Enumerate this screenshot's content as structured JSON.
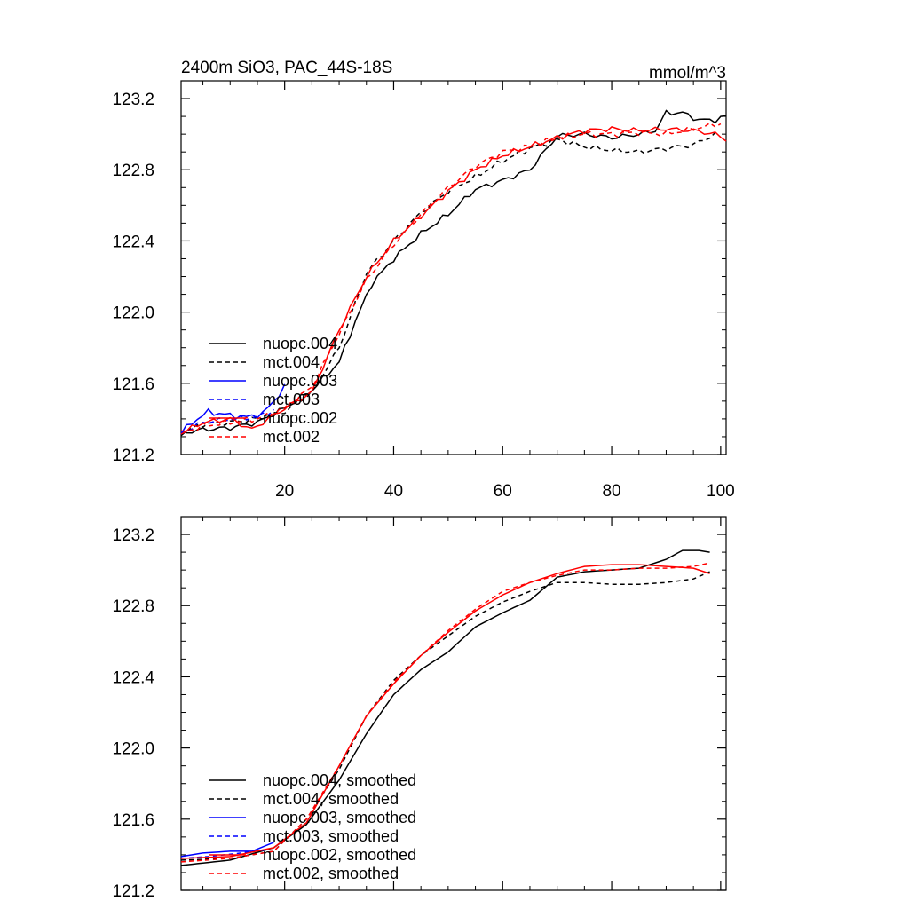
{
  "figure": {
    "title_left": "2400m SiO3, PAC_44S-18S",
    "title_right": "mmol/m^3"
  },
  "chart_data": [
    {
      "type": "line",
      "xlim": [
        1,
        101
      ],
      "ylim": [
        121.2,
        123.3
      ],
      "x_ticks": [
        20,
        40,
        60,
        80,
        100
      ],
      "y_ticks": [
        121.2,
        121.6,
        122.0,
        122.4,
        122.8,
        123.2
      ],
      "x_tick_labels": [
        "20",
        "40",
        "60",
        "80",
        "100"
      ],
      "y_tick_labels": [
        "121.2",
        "121.6",
        "122.0",
        "122.4",
        "122.8",
        "123.2"
      ],
      "grid": false,
      "legend_position": "lower-left",
      "series": [
        {
          "name": "nuopc.004",
          "color": "#000000",
          "dash": "solid",
          "x_start": 1,
          "x_end": 101,
          "points": [
            [
              1,
              121.32
            ],
            [
              5,
              121.34
            ],
            [
              10,
              121.35
            ],
            [
              15,
              121.38
            ],
            [
              20,
              121.46
            ],
            [
              25,
              121.56
            ],
            [
              30,
              121.72
            ],
            [
              33,
              121.95
            ],
            [
              36,
              122.16
            ],
            [
              40,
              122.3
            ],
            [
              45,
              122.44
            ],
            [
              50,
              122.55
            ],
            [
              55,
              122.69
            ],
            [
              60,
              122.74
            ],
            [
              65,
              122.8
            ],
            [
              70,
              122.99
            ],
            [
              75,
              123.0
            ],
            [
              80,
              122.98
            ],
            [
              85,
              123.0
            ],
            [
              88,
              123.02
            ],
            [
              90,
              123.12
            ],
            [
              93,
              123.12
            ],
            [
              96,
              123.08
            ],
            [
              99,
              123.08
            ],
            [
              101,
              123.1
            ]
          ]
        },
        {
          "name": "mct.004",
          "color": "#000000",
          "dash": "dashed",
          "x_start": 1,
          "x_end": 99,
          "points": [
            [
              1,
              121.32
            ],
            [
              5,
              121.37
            ],
            [
              10,
              121.38
            ],
            [
              15,
              121.4
            ],
            [
              20,
              121.44
            ],
            [
              25,
              121.55
            ],
            [
              30,
              121.8
            ],
            [
              35,
              122.22
            ],
            [
              40,
              122.4
            ],
            [
              45,
              122.56
            ],
            [
              50,
              122.68
            ],
            [
              55,
              122.76
            ],
            [
              60,
              122.85
            ],
            [
              65,
              122.92
            ],
            [
              70,
              122.97
            ],
            [
              75,
              122.93
            ],
            [
              80,
              122.91
            ],
            [
              85,
              122.9
            ],
            [
              90,
              122.92
            ],
            [
              95,
              122.94
            ],
            [
              99,
              123.0
            ]
          ]
        },
        {
          "name": "nuopc.003",
          "color": "#0000ff",
          "dash": "solid",
          "x_start": 1,
          "x_end": 20,
          "points": [
            [
              1,
              121.32
            ],
            [
              3,
              121.38
            ],
            [
              6,
              121.44
            ],
            [
              10,
              121.42
            ],
            [
              13,
              121.41
            ],
            [
              16,
              121.43
            ],
            [
              18,
              121.5
            ],
            [
              20,
              121.58
            ]
          ]
        },
        {
          "name": "mct.003",
          "color": "#0000ff",
          "dash": "dashed",
          "x_start": 1,
          "x_end": 18,
          "points": [
            [
              1,
              121.32
            ],
            [
              5,
              121.38
            ],
            [
              10,
              121.4
            ],
            [
              15,
              121.41
            ],
            [
              18,
              121.45
            ]
          ]
        },
        {
          "name": "nuopc.002",
          "color": "#ff0000",
          "dash": "solid",
          "x_start": 1,
          "x_end": 101,
          "points": [
            [
              1,
              121.32
            ],
            [
              5,
              121.38
            ],
            [
              10,
              121.4
            ],
            [
              14,
              121.34
            ],
            [
              20,
              121.46
            ],
            [
              25,
              121.55
            ],
            [
              30,
              121.9
            ],
            [
              35,
              122.2
            ],
            [
              40,
              122.4
            ],
            [
              45,
              122.54
            ],
            [
              50,
              122.68
            ],
            [
              55,
              122.8
            ],
            [
              60,
              122.88
            ],
            [
              65,
              122.93
            ],
            [
              70,
              122.98
            ],
            [
              75,
              123.02
            ],
            [
              80,
              123.03
            ],
            [
              85,
              123.02
            ],
            [
              90,
              123.03
            ],
            [
              95,
              123.02
            ],
            [
              99,
              123.0
            ],
            [
              101,
              122.97
            ]
          ]
        },
        {
          "name": "mct.002",
          "color": "#ff0000",
          "dash": "dashed",
          "x_start": 1,
          "x_end": 100,
          "points": [
            [
              1,
              121.32
            ],
            [
              5,
              121.36
            ],
            [
              10,
              121.38
            ],
            [
              15,
              121.4
            ],
            [
              20,
              121.46
            ],
            [
              25,
              121.58
            ],
            [
              30,
              121.88
            ],
            [
              35,
              122.18
            ],
            [
              40,
              122.38
            ],
            [
              45,
              122.55
            ],
            [
              50,
              122.7
            ],
            [
              55,
              122.82
            ],
            [
              60,
              122.9
            ],
            [
              65,
              122.93
            ],
            [
              70,
              122.98
            ],
            [
              75,
              123.0
            ],
            [
              80,
              123.0
            ],
            [
              85,
              123.01
            ],
            [
              90,
              123.0
            ],
            [
              95,
              123.03
            ],
            [
              100,
              123.06
            ]
          ]
        }
      ]
    },
    {
      "type": "line",
      "xlim": [
        1,
        101
      ],
      "ylim": [
        121.2,
        123.3
      ],
      "x_ticks": [
        20,
        40,
        60,
        80,
        100
      ],
      "y_ticks": [
        121.2,
        121.6,
        122.0,
        122.4,
        122.8,
        123.2
      ],
      "y_tick_labels": [
        "121.2",
        "121.6",
        "122.0",
        "122.4",
        "122.8",
        "123.2"
      ],
      "grid": false,
      "legend_position": "lower-left",
      "series": [
        {
          "name": "nuopc.004, smoothed",
          "color": "#000000",
          "dash": "solid",
          "x_start": 1,
          "x_end": 98,
          "points": [
            [
              1,
              121.34
            ],
            [
              10,
              121.37
            ],
            [
              18,
              121.44
            ],
            [
              24,
              121.57
            ],
            [
              30,
              121.82
            ],
            [
              35,
              122.08
            ],
            [
              40,
              122.3
            ],
            [
              45,
              122.44
            ],
            [
              50,
              122.54
            ],
            [
              55,
              122.68
            ],
            [
              60,
              122.76
            ],
            [
              65,
              122.83
            ],
            [
              70,
              122.96
            ],
            [
              75,
              122.99
            ],
            [
              80,
              123.0
            ],
            [
              85,
              123.01
            ],
            [
              90,
              123.06
            ],
            [
              93,
              123.11
            ],
            [
              96,
              123.11
            ],
            [
              98,
              123.1
            ]
          ]
        },
        {
          "name": "mct.004, smoothed",
          "color": "#000000",
          "dash": "dashed",
          "x_start": 1,
          "x_end": 98,
          "points": [
            [
              1,
              121.37
            ],
            [
              10,
              121.38
            ],
            [
              18,
              121.42
            ],
            [
              24,
              121.6
            ],
            [
              30,
              121.88
            ],
            [
              35,
              122.18
            ],
            [
              40,
              122.38
            ],
            [
              45,
              122.52
            ],
            [
              50,
              122.63
            ],
            [
              55,
              122.74
            ],
            [
              60,
              122.82
            ],
            [
              65,
              122.88
            ],
            [
              70,
              122.93
            ],
            [
              75,
              122.93
            ],
            [
              80,
              122.92
            ],
            [
              85,
              122.92
            ],
            [
              90,
              122.93
            ],
            [
              95,
              122.95
            ],
            [
              98,
              122.99
            ]
          ]
        },
        {
          "name": "nuopc.003, smoothed",
          "color": "#0000ff",
          "dash": "solid",
          "x_start": 1,
          "x_end": 18,
          "points": [
            [
              1,
              121.39
            ],
            [
              5,
              121.41
            ],
            [
              10,
              121.42
            ],
            [
              14,
              121.42
            ],
            [
              18,
              121.47
            ]
          ]
        },
        {
          "name": "mct.003, smoothed",
          "color": "#0000ff",
          "dash": "dashed",
          "x_start": 1,
          "x_end": 17,
          "points": [
            [
              1,
              121.38
            ],
            [
              6,
              121.39
            ],
            [
              12,
              121.41
            ],
            [
              17,
              121.43
            ]
          ]
        },
        {
          "name": "nuopc.002, smoothed",
          "color": "#ff0000",
          "dash": "solid",
          "x_start": 1,
          "x_end": 98,
          "points": [
            [
              1,
              121.38
            ],
            [
              10,
              121.39
            ],
            [
              18,
              121.44
            ],
            [
              24,
              121.58
            ],
            [
              30,
              121.9
            ],
            [
              35,
              122.18
            ],
            [
              40,
              122.36
            ],
            [
              45,
              122.52
            ],
            [
              50,
              122.65
            ],
            [
              55,
              122.77
            ],
            [
              60,
              122.86
            ],
            [
              65,
              122.93
            ],
            [
              70,
              122.98
            ],
            [
              75,
              123.02
            ],
            [
              80,
              123.03
            ],
            [
              85,
              123.03
            ],
            [
              90,
              123.02
            ],
            [
              95,
              123.01
            ],
            [
              98,
              122.98
            ]
          ]
        },
        {
          "name": "mct.002, smoothed",
          "color": "#ff0000",
          "dash": "dashed",
          "x_start": 1,
          "x_end": 98,
          "points": [
            [
              1,
              121.36
            ],
            [
              10,
              121.38
            ],
            [
              18,
              121.42
            ],
            [
              24,
              121.6
            ],
            [
              30,
              121.9
            ],
            [
              35,
              122.18
            ],
            [
              40,
              122.37
            ],
            [
              45,
              122.52
            ],
            [
              50,
              122.66
            ],
            [
              55,
              122.78
            ],
            [
              60,
              122.88
            ],
            [
              65,
              122.93
            ],
            [
              70,
              122.97
            ],
            [
              75,
              123.0
            ],
            [
              80,
              123.0
            ],
            [
              85,
              123.01
            ],
            [
              90,
              123.01
            ],
            [
              95,
              123.02
            ],
            [
              98,
              123.04
            ]
          ]
        }
      ]
    }
  ]
}
